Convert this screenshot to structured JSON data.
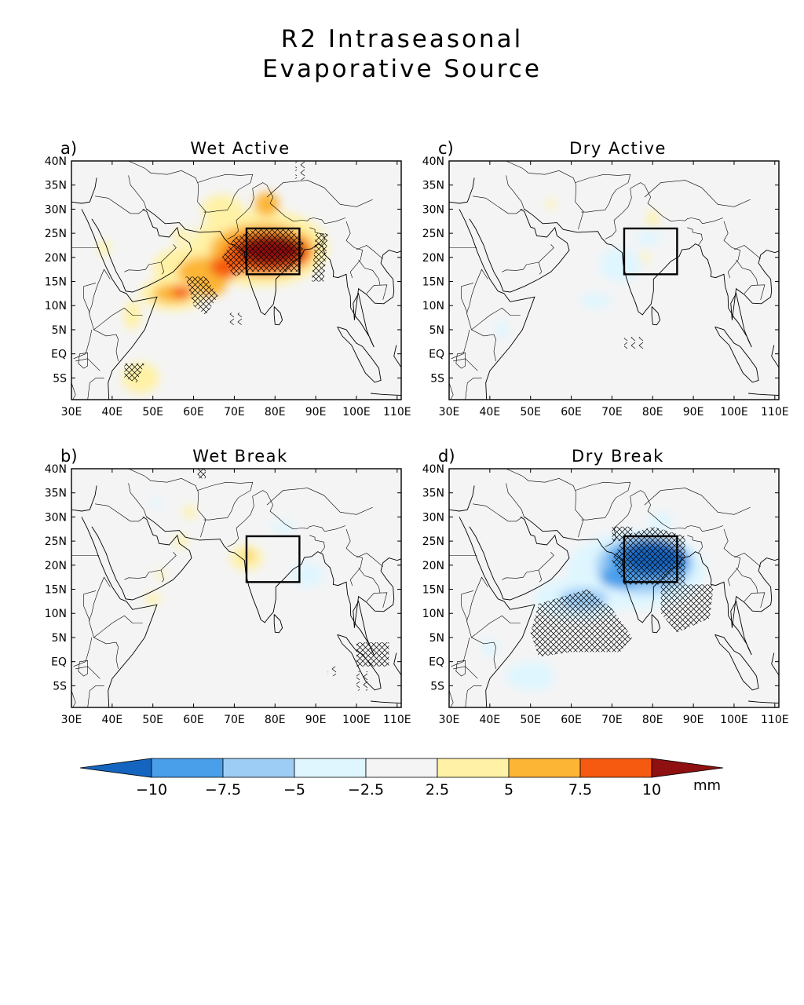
{
  "title": {
    "line1": "R2 Intraseasonal",
    "line2": "Evaporative Source"
  },
  "x_ticks": [
    "30E",
    "40E",
    "50E",
    "60E",
    "70E",
    "80E",
    "90E",
    "100E",
    "110E"
  ],
  "y_ticks": [
    "40N",
    "35N",
    "30N",
    "25N",
    "20N",
    "15N",
    "10N",
    "5N",
    "EQ",
    "5S"
  ],
  "panels": [
    {
      "id": "a",
      "label": "a)",
      "title": "Wet Active",
      "sign": "positive"
    },
    {
      "id": "c",
      "label": "c)",
      "title": "Dry Active",
      "sign": "weak"
    },
    {
      "id": "b",
      "label": "b)",
      "title": "Wet Break",
      "sign": "weak"
    },
    {
      "id": "d",
      "label": "d)",
      "title": "Dry Break",
      "sign": "negative"
    }
  ],
  "box_region": {
    "lon": [
      73,
      86
    ],
    "lat": [
      16.5,
      26
    ]
  },
  "colorbar": {
    "unit": "mm",
    "labels": [
      "−10",
      "−7.5",
      "−5",
      "−2.5",
      "2.5",
      "5",
      "7.5",
      "10"
    ],
    "colors": [
      "#1565c0",
      "#4a9fea",
      "#9dcdf5",
      "#dff6ff",
      "#f4f4f4",
      "#fff2a6",
      "#fcb535",
      "#f55a10",
      "#8f1010"
    ]
  }
}
